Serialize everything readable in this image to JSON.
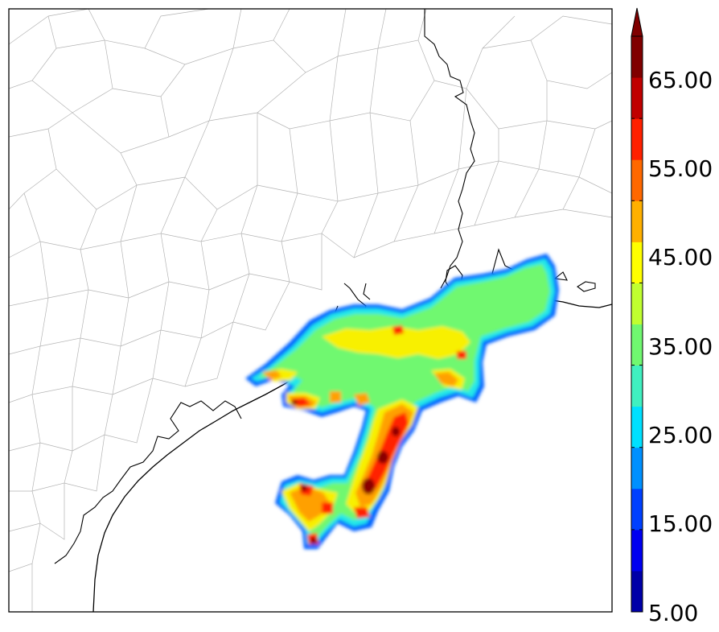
{
  "colorbar": {
    "labels": [
      "5.00",
      "15.00",
      "25.00",
      "35.00",
      "45.00",
      "55.00",
      "65.00"
    ],
    "colors": [
      "#0000a8",
      "#0000f0",
      "#0040ff",
      "#0090ff",
      "#00e0ff",
      "#40f0c0",
      "#70f870",
      "#c0ff30",
      "#ffff00",
      "#ffb000",
      "#ff6800",
      "#ff2000",
      "#c00000",
      "#800000"
    ],
    "extend": "max"
  },
  "map": {
    "background_color": "#ffffff",
    "county_line_color": "#b0b0b0",
    "coast_line_color": "#000000"
  }
}
